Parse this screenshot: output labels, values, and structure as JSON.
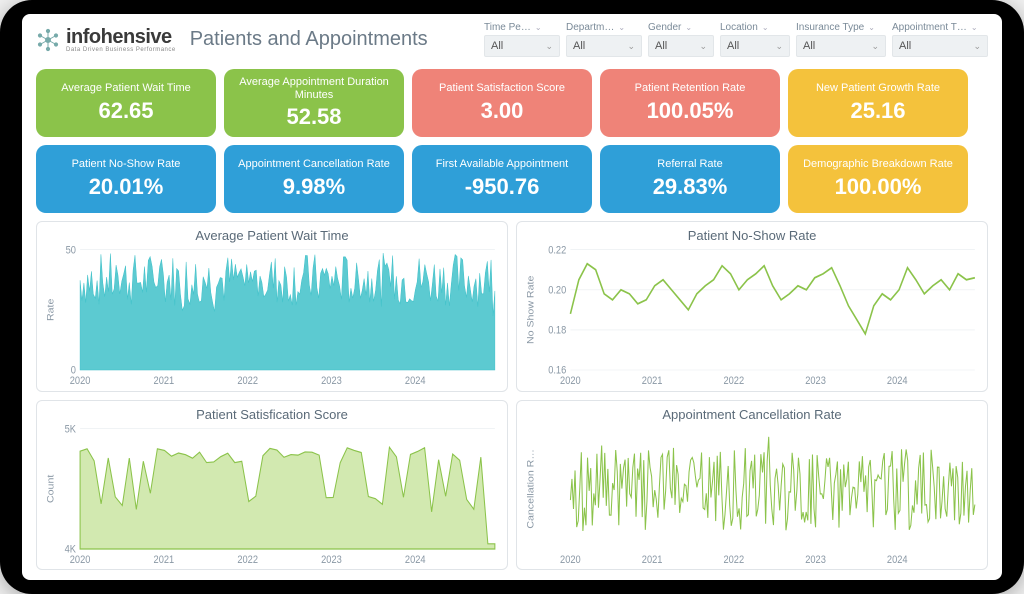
{
  "logo": {
    "name": "infohensive",
    "tagline": "Data Driven Business Performance"
  },
  "page_title": "Patients and Appointments",
  "filters": [
    {
      "key": "time",
      "label": "Time Pe…",
      "value": "All"
    },
    {
      "key": "department",
      "label": "Departm…",
      "value": "All"
    },
    {
      "key": "gender",
      "label": "Gender",
      "value": "All"
    },
    {
      "key": "location",
      "label": "Location",
      "value": "All"
    },
    {
      "key": "insurance",
      "label": "Insurance Type",
      "value": "All"
    },
    {
      "key": "appt_type",
      "label": "Appointment T…",
      "value": "All"
    }
  ],
  "cards": {
    "wait": {
      "title": "Average Patient Wait Time",
      "value": "62.65",
      "color": "#8bc34a"
    },
    "dur": {
      "title": "Average Appointment Duration Minutes",
      "value": "52.58",
      "color": "#8bc34a"
    },
    "sat": {
      "title": "Patient Satisfaction Score",
      "value": "3.00",
      "color": "#ef8378"
    },
    "ret": {
      "title": "Patient Retention Rate",
      "value": "100.05%",
      "color": "#ef8378"
    },
    "new": {
      "title": "New Patient Growth Rate",
      "value": "25.16",
      "color": "#f4c23c"
    },
    "noshow": {
      "title": "Patient No-Show Rate",
      "value": "20.01%",
      "color": "#2f9fd8"
    },
    "cancel": {
      "title": "Appointment Cancellation Rate",
      "value": "9.98%",
      "color": "#2f9fd8"
    },
    "first": {
      "title": "First Available Appointment",
      "value": "-950.76",
      "color": "#2f9fd8"
    },
    "ref": {
      "title": "Referral Rate",
      "value": "29.83%",
      "color": "#2f9fd8"
    },
    "demo": {
      "title": "Demographic Breakdown Rate",
      "value": "100.00%",
      "color": "#f4c23c"
    }
  },
  "charts": {
    "wait_time": {
      "title": "Average Patient Wait Time",
      "type": "area-dense",
      "ylabel": "Rate",
      "x_ticks": [
        "2020",
        "2021",
        "2022",
        "2023",
        "2024"
      ],
      "y_ticks": [
        "0",
        "50"
      ],
      "ylim": [
        0,
        80
      ],
      "xlim": [
        2020,
        2025
      ],
      "fill_color": "#3fc1c9",
      "stroke_color": "#3fc1c9",
      "grid_color": "#e8ecef",
      "background_color": "#ffffff",
      "tick_fontsize": 9,
      "series_mean": 60,
      "series_noise": 18,
      "series_points": 220
    },
    "no_show": {
      "title": "Patient No-Show Rate",
      "type": "line",
      "ylabel": "No Show Rate",
      "x_ticks": [
        "2020",
        "2021",
        "2022",
        "2023",
        "2024"
      ],
      "y_ticks": [
        "0.16",
        "0.18",
        "0.20",
        "0.22"
      ],
      "ylim": [
        0.16,
        0.22
      ],
      "xlim": [
        2020,
        2025
      ],
      "stroke_color": "#8bc34a",
      "stroke_width": 1.5,
      "grid_color": "#e8ecef",
      "background_color": "#ffffff",
      "tick_fontsize": 9,
      "values": [
        0.188,
        0.205,
        0.213,
        0.21,
        0.198,
        0.195,
        0.2,
        0.198,
        0.193,
        0.195,
        0.202,
        0.205,
        0.2,
        0.195,
        0.19,
        0.198,
        0.202,
        0.205,
        0.212,
        0.208,
        0.2,
        0.205,
        0.208,
        0.212,
        0.202,
        0.195,
        0.198,
        0.202,
        0.2,
        0.206,
        0.208,
        0.211,
        0.202,
        0.192,
        0.185,
        0.178,
        0.192,
        0.198,
        0.195,
        0.2,
        0.211,
        0.205,
        0.198,
        0.202,
        0.205,
        0.2,
        0.208,
        0.205,
        0.206
      ]
    },
    "satisfaction": {
      "title": "Patient Satisfication Score",
      "type": "area-jagged",
      "ylabel": "Count",
      "x_ticks": [
        "2020",
        "2021",
        "2022",
        "2023",
        "2024"
      ],
      "y_ticks": [
        "4K",
        "5K"
      ],
      "ylim": [
        3500,
        5800
      ],
      "xlim": [
        2020,
        2025
      ],
      "fill_color": "#bfe08f",
      "stroke_color": "#8bc34a",
      "grid_color": "#e8ecef",
      "background_color": "#ffffff",
      "tick_fontsize": 9,
      "series_base": 5300,
      "series_dip": 4400,
      "series_points": 60
    },
    "cancellation": {
      "title": "Appointment Cancellation Rate",
      "type": "dense-line",
      "ylabel": "Cancellation R…",
      "x_ticks": [
        "2020",
        "2021",
        "2022",
        "2023",
        "2024"
      ],
      "y_ticks": [],
      "ylim": [
        0.05,
        0.15
      ],
      "xlim": [
        2020,
        2025
      ],
      "stroke_color": "#8bc34a",
      "stroke_width": 1,
      "grid_color": "#e8ecef",
      "background_color": "#ffffff",
      "tick_fontsize": 9,
      "series_mean": 0.1,
      "series_noise": 0.035,
      "series_points": 260
    }
  }
}
